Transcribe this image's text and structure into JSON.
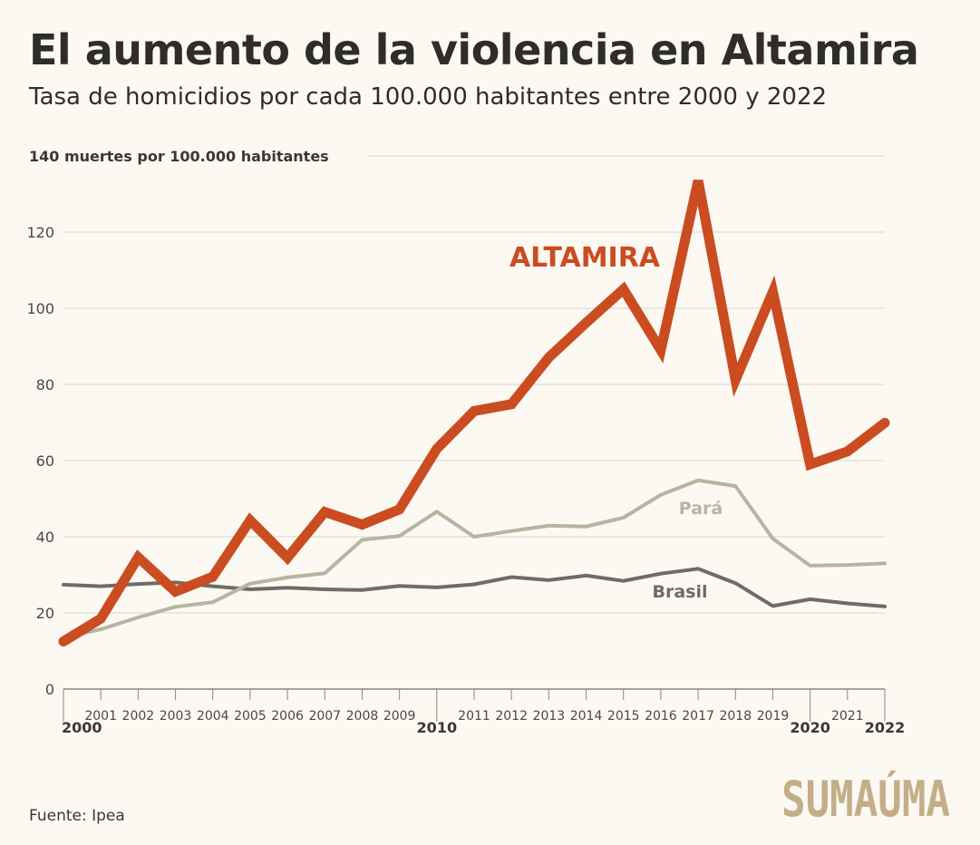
{
  "header": {
    "title": "El aumento de la violencia en Altamira",
    "subtitle": "Tasa de homicidios por cada 100.000 habitantes entre 2000 y 2022"
  },
  "source": "Fuente: Ipea",
  "logo": {
    "text": "SUMAÚMA",
    "color": "#c4ae8a"
  },
  "chart_data": {
    "type": "line",
    "x": [
      2000,
      2001,
      2002,
      2003,
      2004,
      2005,
      2006,
      2007,
      2008,
      2009,
      2010,
      2011,
      2012,
      2013,
      2014,
      2015,
      2016,
      2017,
      2018,
      2019,
      2020,
      2021,
      2022
    ],
    "x_bold_labels": [
      2000,
      2010,
      2020,
      2022
    ],
    "ylim": [
      0,
      140
    ],
    "yticks": [
      0,
      20,
      40,
      60,
      80,
      100,
      120
    ],
    "ylabel": "140 muertes por 100.000 habitantes",
    "grid": true,
    "series": [
      {
        "name": "Brasil",
        "color": "#6d6c66",
        "width": 4,
        "values": [
          27.4,
          27,
          27.6,
          28,
          27,
          26.2,
          26.6,
          26.2,
          26,
          27.1,
          26.7,
          27.5,
          29.4,
          28.6,
          29.8,
          28.4,
          30.3,
          31.6,
          27.8,
          21.8,
          23.6,
          22.5,
          21.7
        ]
      },
      {
        "name": "Pará",
        "color": "#b5b5a2",
        "width": 4,
        "values": [
          13.5,
          15.7,
          18.8,
          21.6,
          22.8,
          27.7,
          29.3,
          30.4,
          39.2,
          40.2,
          46.6,
          40,
          41.5,
          42.9,
          42.7,
          45,
          51,
          54.8,
          53.3,
          39.5,
          32.4,
          32.6,
          33
        ]
      },
      {
        "name": "ALTAMIRA",
        "color": "#cb4c21",
        "width": 11,
        "values": [
          12.5,
          18.5,
          34.6,
          25.6,
          29.5,
          44.3,
          34.5,
          46.5,
          43.2,
          47.2,
          63.1,
          73,
          74.8,
          87.1,
          96.2,
          105,
          89,
          133.5,
          81.2,
          104.3,
          59,
          62.4,
          69.9
        ]
      }
    ]
  }
}
